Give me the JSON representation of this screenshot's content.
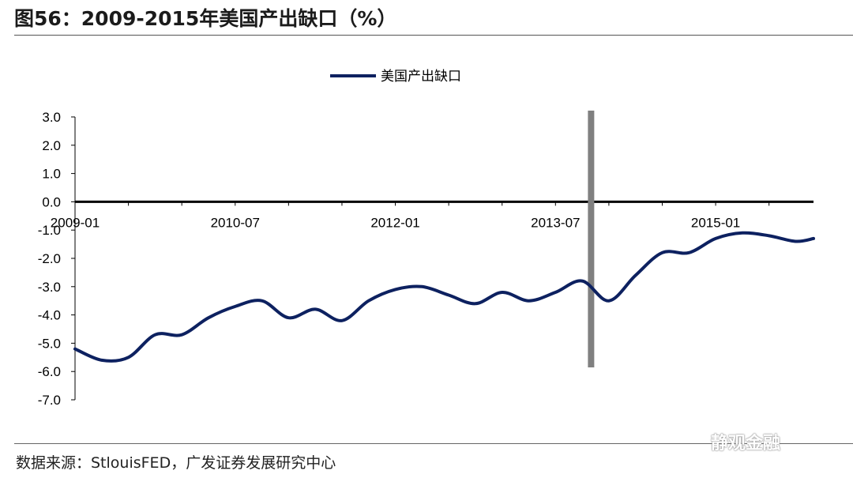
{
  "header": {
    "title": "图56：2009-2015年美国产出缺口（%）"
  },
  "footer": {
    "source": "数据来源：StlouisFED，广发证券发展研究中心",
    "watermark": "静观金融"
  },
  "chart_data": {
    "type": "line",
    "title": "",
    "xlabel": "",
    "ylabel": "",
    "ylim": [
      -7.0,
      3.0
    ],
    "yticks": [
      "3.0",
      "2.0",
      "1.0",
      "0.0",
      "-1.0",
      "-2.0",
      "-3.0",
      "-4.0",
      "-5.0",
      "-6.0",
      "-7.0"
    ],
    "ytick_values": [
      3,
      2,
      1,
      0,
      -1,
      -2,
      -3,
      -4,
      -5,
      -6,
      -7
    ],
    "xticks": [
      "2009-01",
      "2010-07",
      "2012-01",
      "2013-07",
      "2015-01"
    ],
    "xtick_positions": [
      "2009-01",
      "2010-07",
      "2012-01",
      "2013-07",
      "2015-01"
    ],
    "xlim": [
      "2009-01",
      "2015-12"
    ],
    "legend": {
      "position": "top-center"
    },
    "series": [
      {
        "name": "美国产出缺口",
        "color": "#0d2160",
        "x": [
          "2009-01",
          "2009-04",
          "2009-07",
          "2009-10",
          "2010-01",
          "2010-04",
          "2010-07",
          "2010-10",
          "2011-01",
          "2011-04",
          "2011-07",
          "2011-10",
          "2012-01",
          "2012-04",
          "2012-07",
          "2012-10",
          "2013-01",
          "2013-04",
          "2013-07",
          "2013-10",
          "2014-01",
          "2014-04",
          "2014-07",
          "2014-10",
          "2015-01",
          "2015-04",
          "2015-07",
          "2015-10",
          "2015-12"
        ],
        "values": [
          -5.2,
          -5.6,
          -5.5,
          -4.7,
          -4.7,
          -4.1,
          -3.7,
          -3.5,
          -4.1,
          -3.8,
          -4.2,
          -3.5,
          -3.1,
          -3.0,
          -3.3,
          -3.6,
          -3.2,
          -3.5,
          -3.2,
          -2.8,
          -3.5,
          -2.6,
          -1.8,
          -1.8,
          -1.3,
          -1.1,
          -1.2,
          -1.4,
          -1.3
        ]
      }
    ],
    "annotations": [
      {
        "type": "vertical-band",
        "x": "2013-11",
        "color": "#808080"
      }
    ],
    "grid": false
  }
}
